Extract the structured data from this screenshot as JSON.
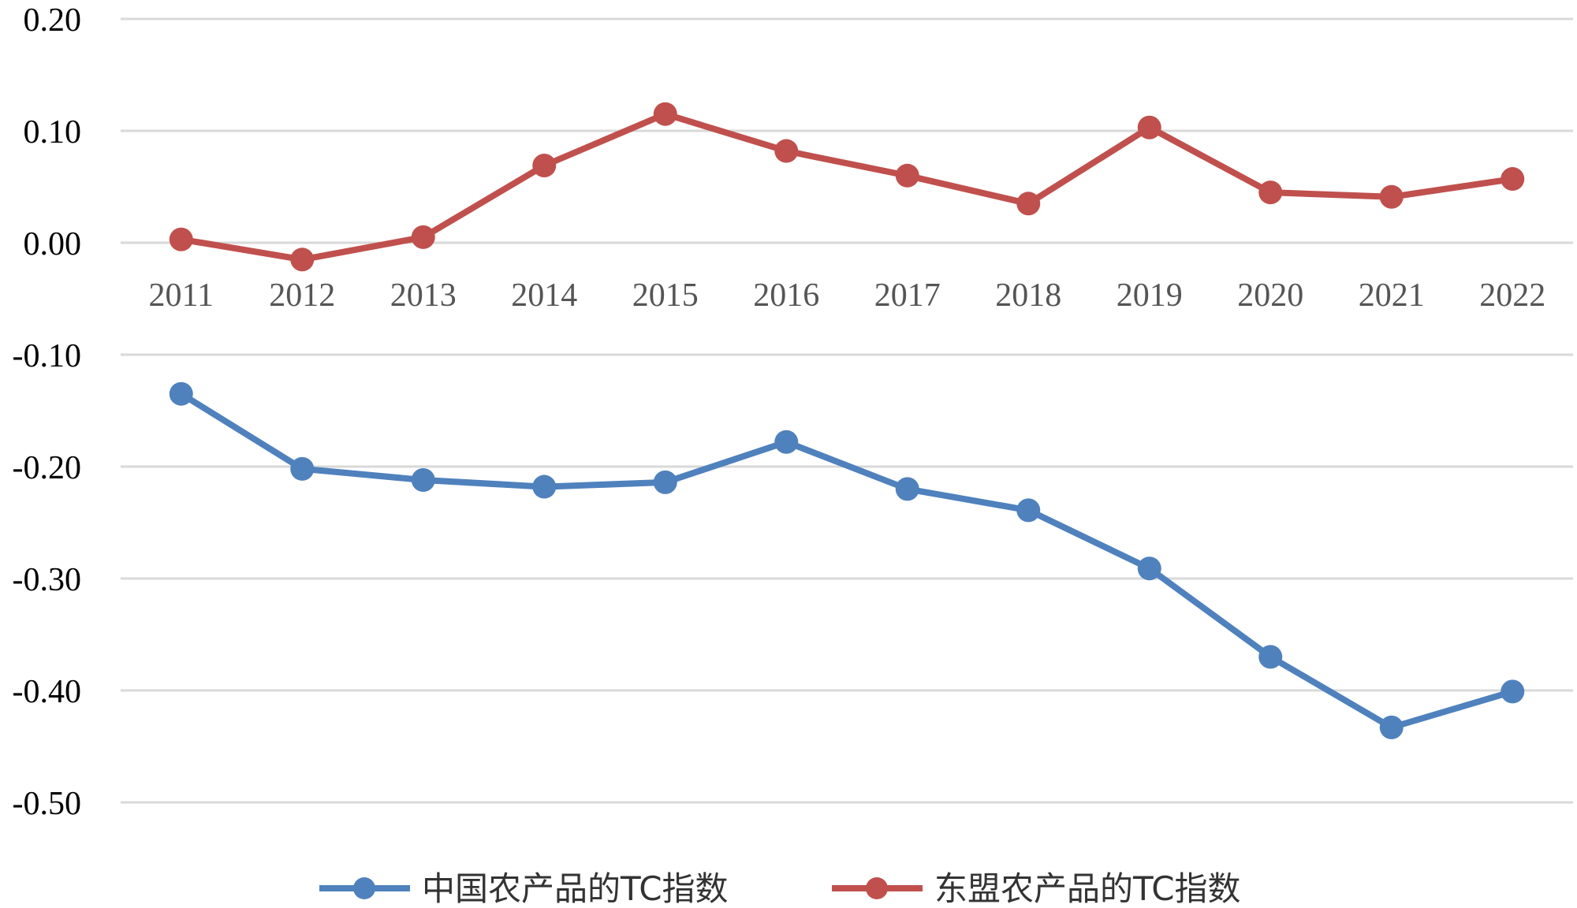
{
  "chart_data": {
    "type": "line",
    "categories": [
      "2011",
      "2012",
      "2013",
      "2014",
      "2015",
      "2016",
      "2017",
      "2018",
      "2019",
      "2020",
      "2021",
      "2022"
    ],
    "series": [
      {
        "name": "中国农产品的TC指数",
        "color": "#4F81BD",
        "values": [
          -0.135,
          -0.202,
          -0.212,
          -0.218,
          -0.214,
          -0.178,
          -0.22,
          -0.239,
          -0.291,
          -0.37,
          -0.433,
          -0.401
        ]
      },
      {
        "name": "东盟农产品的TC指数",
        "color": "#C0504D",
        "values": [
          0.003,
          -0.015,
          0.005,
          0.069,
          0.115,
          0.082,
          0.06,
          0.035,
          0.103,
          0.045,
          0.041,
          0.057
        ]
      }
    ],
    "y_ticks": [
      "0.20",
      "0.10",
      "0.00",
      "-0.10",
      "-0.20",
      "-0.30",
      "-0.40",
      "-0.50"
    ],
    "ylim": [
      -0.5,
      0.2
    ],
    "grid": true,
    "legend_position": "bottom"
  }
}
